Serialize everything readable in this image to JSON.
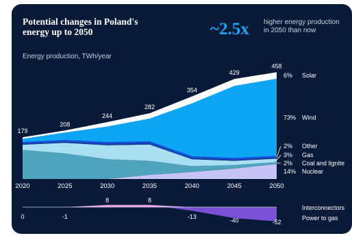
{
  "title": "Potential changes in Poland's energy up to 2050",
  "subtitle": "Energy production, TWh/year",
  "highlight": {
    "value": "~2.5x",
    "text": "higher energy production in 2050 than now"
  },
  "colors": {
    "background": "#081a38",
    "Solar": "#ffffff",
    "Wind": "#0fa5f5",
    "Other": "#123f9c",
    "Gas": "#a9dff2",
    "Coal and lignite": "#4fa3bd",
    "Nuclear": "#c6c3f5",
    "Interconnectors": "#e9a0e5",
    "Power to gas": "#7b4fd6"
  },
  "chart_data": [
    {
      "type": "area",
      "stacked": true,
      "x": [
        2020,
        2025,
        2030,
        2035,
        2040,
        2045,
        2050
      ],
      "totals": [
        179,
        208,
        244,
        282,
        354,
        429,
        458
      ],
      "series": [
        {
          "name": "Nuclear",
          "share_2050": "14%",
          "values": [
            0,
            0,
            0,
            18,
            30,
            45,
            64
          ]
        },
        {
          "name": "Coal and lignite",
          "share_2050": "2%",
          "values": [
            125,
            110,
            85,
            60,
            25,
            15,
            9
          ]
        },
        {
          "name": "Gas",
          "share_2050": "3%",
          "values": [
            22,
            45,
            60,
            70,
            30,
            18,
            14
          ]
        },
        {
          "name": "Other",
          "share_2050": "2%",
          "values": [
            8,
            9,
            10,
            10,
            9,
            9,
            9
          ]
        },
        {
          "name": "Wind",
          "share_2050": "73%",
          "values": [
            17,
            35,
            70,
            101,
            230,
            312,
            334
          ]
        },
        {
          "name": "Solar",
          "share_2050": "6%",
          "values": [
            7,
            9,
            19,
            23,
            30,
            30,
            28
          ]
        }
      ]
    },
    {
      "type": "area",
      "x": [
        2020,
        2025,
        2030,
        2035,
        2040,
        2045,
        2050
      ],
      "values": [
        0,
        -1,
        8,
        8,
        -13,
        -40,
        -52
      ],
      "labels": [
        "0",
        "-1",
        "8",
        "8",
        "-13",
        "-40",
        "-52"
      ],
      "series": [
        {
          "name": "Interconnectors"
        },
        {
          "name": "Power to gas"
        }
      ]
    }
  ]
}
